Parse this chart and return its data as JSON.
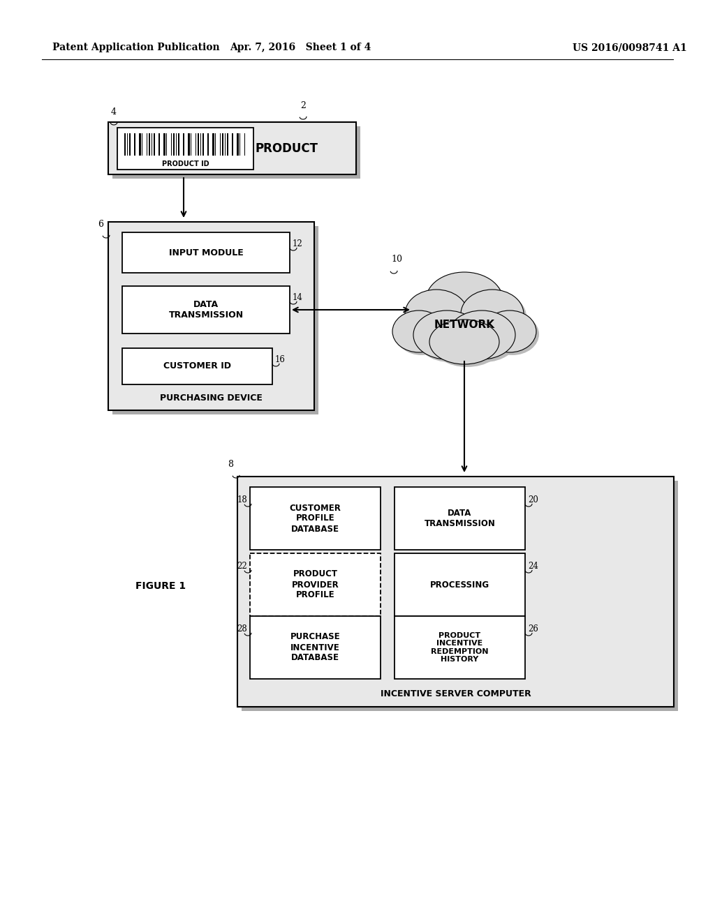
{
  "bg_color": "#ffffff",
  "header_left": "Patent Application Publication",
  "header_mid": "Apr. 7, 2016   Sheet 1 of 4",
  "header_right": "US 2016/0098741 A1",
  "figure_label": "FIGURE 1"
}
